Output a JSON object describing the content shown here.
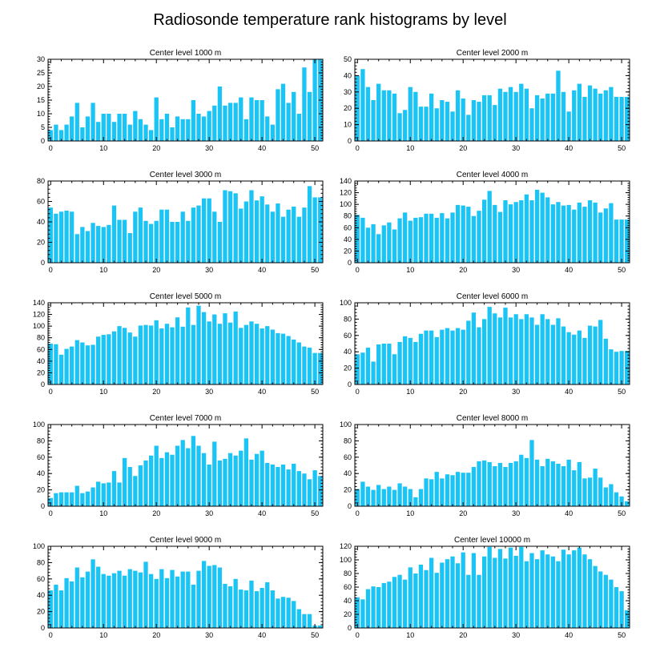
{
  "figure_title": "Radiosonde temperature rank histograms by level",
  "colors": {
    "bar": "#1AC4F5",
    "axis": "#000000"
  },
  "chart_data": [
    {
      "type": "bar",
      "title": "Center level 1000 m",
      "xlim": [
        -0.5,
        51.5
      ],
      "xticks": [
        0,
        10,
        20,
        30,
        40,
        50
      ],
      "ylim": [
        0,
        30
      ],
      "yticks": [
        0,
        5,
        10,
        15,
        20,
        25,
        30
      ],
      "values": [
        4,
        6,
        4,
        6,
        9,
        14,
        5,
        9,
        14,
        7,
        10,
        10,
        7,
        10,
        10,
        6,
        11,
        8,
        6,
        4,
        16,
        8,
        10,
        5,
        9,
        8,
        8,
        15,
        10,
        9,
        11,
        13,
        20,
        13,
        14,
        14,
        16,
        8,
        16,
        15,
        15,
        9,
        6,
        19,
        21,
        14,
        18,
        10,
        27,
        18,
        30,
        30
      ]
    },
    {
      "type": "bar",
      "title": "Center level 2000 m",
      "xlim": [
        -0.5,
        51.5
      ],
      "xticks": [
        0,
        10,
        20,
        30,
        40,
        50
      ],
      "ylim": [
        0,
        50
      ],
      "yticks": [
        0,
        10,
        20,
        30,
        40,
        50
      ],
      "values": [
        40,
        44,
        33,
        25,
        35,
        31,
        31,
        29,
        17,
        19,
        33,
        30,
        21,
        21,
        29,
        20,
        25,
        24,
        18,
        31,
        26,
        16,
        25,
        24,
        28,
        28,
        22,
        32,
        30,
        33,
        30,
        35,
        32,
        20,
        28,
        26,
        29,
        29,
        43,
        30,
        18,
        31,
        35,
        27,
        34,
        32,
        29,
        31,
        33,
        27,
        27,
        27
      ]
    },
    {
      "type": "bar",
      "title": "Center level 3000 m",
      "xlim": [
        -0.5,
        51.5
      ],
      "xticks": [
        0,
        10,
        20,
        30,
        40,
        50
      ],
      "ylim": [
        0,
        80
      ],
      "yticks": [
        0,
        20,
        40,
        60,
        80
      ],
      "values": [
        54,
        48,
        50,
        51,
        50,
        28,
        35,
        31,
        39,
        36,
        35,
        37,
        56,
        42,
        42,
        29,
        50,
        54,
        41,
        38,
        41,
        52,
        52,
        40,
        40,
        50,
        41,
        54,
        56,
        63,
        63,
        50,
        40,
        71,
        70,
        68,
        53,
        60,
        71,
        61,
        65,
        57,
        50,
        58,
        45,
        52,
        55,
        45,
        54,
        75,
        64,
        64
      ]
    },
    {
      "type": "bar",
      "title": "Center level 4000 m",
      "xlim": [
        -0.5,
        51.5
      ],
      "xticks": [
        0,
        10,
        20,
        30,
        40,
        50
      ],
      "ylim": [
        0,
        140
      ],
      "yticks": [
        0,
        20,
        40,
        60,
        80,
        100,
        120,
        140
      ],
      "values": [
        82,
        77,
        60,
        66,
        49,
        64,
        69,
        57,
        76,
        86,
        72,
        77,
        78,
        84,
        84,
        77,
        85,
        76,
        86,
        99,
        98,
        96,
        80,
        89,
        108,
        123,
        99,
        87,
        107,
        100,
        104,
        107,
        117,
        107,
        125,
        120,
        112,
        100,
        104,
        98,
        99,
        91,
        103,
        96,
        107,
        103,
        86,
        93,
        102,
        74,
        74,
        74
      ]
    },
    {
      "type": "bar",
      "title": "Center level 5000 m",
      "xlim": [
        -0.5,
        51.5
      ],
      "xticks": [
        0,
        10,
        20,
        30,
        40,
        50
      ],
      "ylim": [
        0,
        140
      ],
      "yticks": [
        0,
        20,
        40,
        60,
        80,
        100,
        120,
        140
      ],
      "values": [
        70,
        69,
        51,
        61,
        65,
        76,
        72,
        67,
        68,
        82,
        85,
        86,
        91,
        100,
        97,
        89,
        82,
        101,
        102,
        101,
        110,
        96,
        104,
        98,
        115,
        99,
        132,
        102,
        135,
        124,
        108,
        120,
        104,
        122,
        106,
        125,
        97,
        102,
        108,
        104,
        96,
        100,
        94,
        88,
        87,
        83,
        77,
        72,
        65,
        63,
        54,
        54
      ]
    },
    {
      "type": "bar",
      "title": "Center level 6000 m",
      "xlim": [
        -0.5,
        51.5
      ],
      "xticks": [
        0,
        10,
        20,
        30,
        40,
        50
      ],
      "ylim": [
        0,
        100
      ],
      "yticks": [
        0,
        20,
        40,
        60,
        80,
        100
      ],
      "values": [
        37,
        39,
        45,
        28,
        49,
        50,
        50,
        37,
        52,
        59,
        57,
        52,
        62,
        66,
        66,
        58,
        67,
        69,
        66,
        69,
        67,
        78,
        88,
        70,
        80,
        95,
        87,
        82,
        94,
        82,
        86,
        80,
        86,
        82,
        73,
        86,
        80,
        73,
        81,
        71,
        64,
        61,
        66,
        57,
        72,
        71,
        79,
        56,
        43,
        40,
        41,
        41
      ]
    },
    {
      "type": "bar",
      "title": "Center level 7000 m",
      "xlim": [
        -0.5,
        51.5
      ],
      "xticks": [
        0,
        10,
        20,
        30,
        40,
        50
      ],
      "ylim": [
        0,
        100
      ],
      "yticks": [
        0,
        20,
        40,
        60,
        80,
        100
      ],
      "values": [
        10,
        16,
        17,
        17,
        17,
        25,
        16,
        18,
        23,
        30,
        28,
        29,
        43,
        29,
        59,
        48,
        37,
        50,
        56,
        62,
        74,
        59,
        66,
        63,
        74,
        81,
        71,
        86,
        74,
        65,
        51,
        79,
        56,
        58,
        65,
        62,
        68,
        83,
        57,
        64,
        68,
        53,
        51,
        48,
        51,
        45,
        52,
        43,
        40,
        33,
        44,
        37
      ]
    },
    {
      "type": "bar",
      "title": "Center level 8000 m",
      "xlim": [
        -0.5,
        51.5
      ],
      "xticks": [
        0,
        10,
        20,
        30,
        40,
        50
      ],
      "ylim": [
        0,
        100
      ],
      "yticks": [
        0,
        20,
        40,
        60,
        80,
        100
      ],
      "values": [
        21,
        30,
        24,
        20,
        26,
        21,
        24,
        20,
        28,
        24,
        21,
        11,
        21,
        34,
        33,
        42,
        34,
        39,
        38,
        42,
        41,
        41,
        48,
        55,
        56,
        54,
        49,
        53,
        48,
        53,
        55,
        63,
        59,
        81,
        57,
        49,
        58,
        55,
        52,
        49,
        57,
        44,
        54,
        34,
        35,
        46,
        35,
        23,
        27,
        17,
        12,
        6
      ]
    },
    {
      "type": "bar",
      "title": "Center level 9000 m",
      "xlim": [
        -0.5,
        51.5
      ],
      "xticks": [
        0,
        10,
        20,
        30,
        40,
        50
      ],
      "ylim": [
        0,
        100
      ],
      "yticks": [
        0,
        20,
        40,
        60,
        80,
        100
      ],
      "values": [
        46,
        53,
        46,
        61,
        57,
        74,
        62,
        69,
        84,
        75,
        66,
        64,
        67,
        70,
        64,
        72,
        70,
        68,
        81,
        66,
        60,
        72,
        61,
        71,
        63,
        69,
        69,
        53,
        70,
        82,
        76,
        77,
        74,
        54,
        51,
        60,
        47,
        46,
        58,
        45,
        49,
        56,
        46,
        36,
        38,
        37,
        33,
        23,
        17,
        17,
        3,
        3
      ]
    },
    {
      "type": "bar",
      "title": "Center level 10000 m",
      "xlim": [
        -0.5,
        51.5
      ],
      "xticks": [
        0,
        10,
        20,
        30,
        40,
        50
      ],
      "ylim": [
        0,
        120
      ],
      "yticks": [
        0,
        20,
        40,
        60,
        80,
        100,
        120
      ],
      "values": [
        45,
        42,
        57,
        61,
        60,
        66,
        68,
        75,
        78,
        71,
        89,
        80,
        93,
        85,
        103,
        81,
        96,
        101,
        105,
        95,
        111,
        78,
        110,
        78,
        105,
        119,
        103,
        116,
        102,
        118,
        106,
        119,
        98,
        110,
        101,
        114,
        108,
        105,
        98,
        115,
        108,
        114,
        118,
        108,
        101,
        91,
        83,
        78,
        71,
        60,
        54,
        26
      ]
    }
  ]
}
